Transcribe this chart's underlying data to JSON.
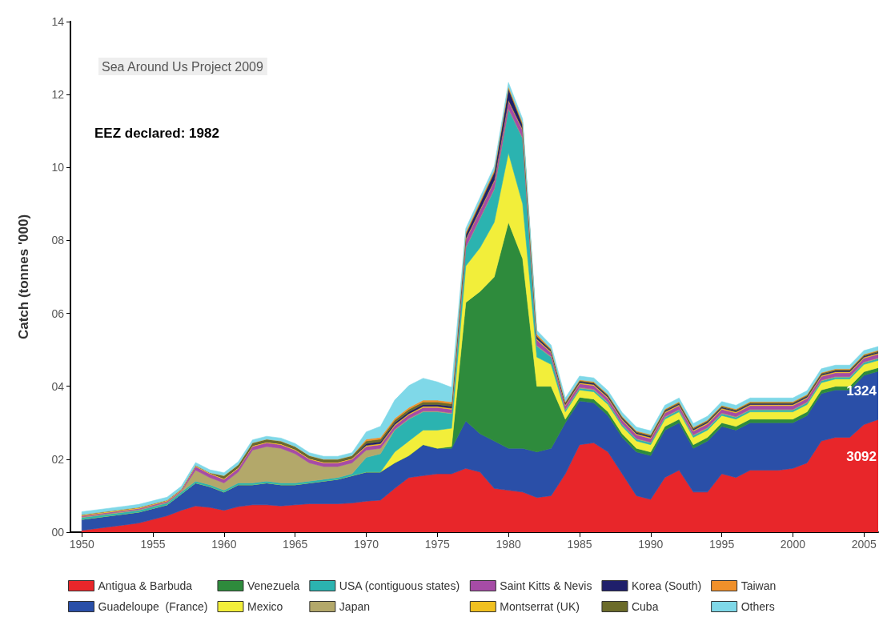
{
  "chart_data": {
    "type": "area",
    "stacked": true,
    "ylabel": "Catch (tonnes '000)",
    "annotations": [
      "Sea Around Us Project 2009",
      "EEZ declared: 1982",
      "1324",
      "3092"
    ],
    "x": [
      1950,
      1951,
      1952,
      1953,
      1954,
      1955,
      1956,
      1957,
      1958,
      1959,
      1960,
      1961,
      1962,
      1963,
      1964,
      1965,
      1966,
      1967,
      1968,
      1969,
      1970,
      1971,
      1972,
      1973,
      1974,
      1975,
      1976,
      1977,
      1978,
      1979,
      1980,
      1981,
      1982,
      1983,
      1984,
      1985,
      1986,
      1987,
      1988,
      1989,
      1990,
      1991,
      1992,
      1993,
      1994,
      1995,
      1996,
      1997,
      1998,
      1999,
      2000,
      2001,
      2002,
      2003,
      2004,
      2005,
      2006
    ],
    "xlim": [
      1949.2,
      2006
    ],
    "xticks": [
      1950,
      1955,
      1960,
      1965,
      1970,
      1975,
      1980,
      1985,
      1990,
      1995,
      2000,
      2005
    ],
    "ylim": [
      0,
      14
    ],
    "yticks": [
      {
        "value": 0,
        "label": "00"
      },
      {
        "value": 2,
        "label": "02"
      },
      {
        "value": 4,
        "label": "04"
      },
      {
        "value": 6,
        "label": "06"
      },
      {
        "value": 8,
        "label": "08"
      },
      {
        "value": 10,
        "label": "10"
      },
      {
        "value": 12,
        "label": "12"
      },
      {
        "value": 14,
        "label": "14"
      }
    ],
    "grid": false,
    "legend": "bottom",
    "series": [
      {
        "name": "Antigua & Barbuda",
        "color": "#e8262a",
        "values": [
          0.05,
          0.1,
          0.15,
          0.2,
          0.25,
          0.35,
          0.45,
          0.6,
          0.72,
          0.68,
          0.6,
          0.7,
          0.75,
          0.75,
          0.72,
          0.75,
          0.78,
          0.78,
          0.78,
          0.8,
          0.85,
          0.88,
          1.2,
          1.5,
          1.55,
          1.6,
          1.6,
          1.75,
          1.65,
          1.2,
          1.15,
          1.1,
          0.95,
          1.0,
          1.6,
          2.4,
          2.45,
          2.2,
          1.6,
          1.0,
          0.9,
          1.5,
          1.7,
          1.1,
          1.1,
          1.6,
          1.5,
          1.7,
          1.7,
          1.7,
          1.75,
          1.9,
          2.5,
          2.6,
          2.6,
          2.95,
          3.09
        ]
      },
      {
        "name": "Guadeloupe  (France)",
        "color": "#2a4fa8",
        "values": [
          0.3,
          0.3,
          0.3,
          0.3,
          0.3,
          0.3,
          0.3,
          0.45,
          0.63,
          0.57,
          0.5,
          0.6,
          0.55,
          0.6,
          0.58,
          0.55,
          0.57,
          0.62,
          0.67,
          0.75,
          0.8,
          0.77,
          0.7,
          0.6,
          0.85,
          0.7,
          0.7,
          1.3,
          1.05,
          1.3,
          1.15,
          1.2,
          1.25,
          1.3,
          1.4,
          1.2,
          1.1,
          1.0,
          1.0,
          1.2,
          1.2,
          1.3,
          1.3,
          1.2,
          1.4,
          1.3,
          1.3,
          1.3,
          1.3,
          1.3,
          1.25,
          1.3,
          1.3,
          1.3,
          1.3,
          1.35,
          1.32
        ]
      },
      {
        "name": "Venezuela",
        "color": "#2e8b3c",
        "values": [
          0,
          0,
          0,
          0,
          0,
          0,
          0,
          0,
          0,
          0,
          0,
          0,
          0,
          0,
          0,
          0,
          0,
          0,
          0,
          0,
          0,
          0,
          0,
          0,
          0,
          0,
          0.05,
          3.25,
          3.9,
          4.5,
          6.2,
          5.2,
          1.8,
          1.7,
          0.1,
          0.1,
          0.1,
          0.1,
          0.1,
          0.1,
          0.1,
          0.1,
          0.1,
          0.1,
          0.1,
          0.1,
          0.1,
          0.1,
          0.1,
          0.1,
          0.1,
          0.1,
          0.1,
          0.1,
          0.1,
          0.1,
          0.1
        ]
      },
      {
        "name": "Mexico",
        "color": "#f2ee3a",
        "values": [
          0,
          0,
          0,
          0,
          0,
          0,
          0,
          0,
          0,
          0,
          0,
          0,
          0,
          0,
          0,
          0,
          0,
          0,
          0,
          0,
          0,
          0,
          0.3,
          0.4,
          0.4,
          0.5,
          0.5,
          1.0,
          1.2,
          1.5,
          1.9,
          1.5,
          0.8,
          0.6,
          0.2,
          0.2,
          0.2,
          0.2,
          0.2,
          0.2,
          0.2,
          0.2,
          0.2,
          0.2,
          0.2,
          0.2,
          0.2,
          0.2,
          0.2,
          0.2,
          0.2,
          0.2,
          0.2,
          0.2,
          0.2,
          0.2,
          0.2
        ]
      },
      {
        "name": "USA (contiguous states)",
        "color": "#2bb3b0",
        "values": [
          0.05,
          0.05,
          0.05,
          0.05,
          0.05,
          0.05,
          0.05,
          0.05,
          0.05,
          0.05,
          0.05,
          0.05,
          0.05,
          0.05,
          0.05,
          0.05,
          0.05,
          0.05,
          0.05,
          0.05,
          0.4,
          0.5,
          0.6,
          0.6,
          0.5,
          0.5,
          0.4,
          0.5,
          0.8,
          0.9,
          1.2,
          1.8,
          0.3,
          0.2,
          0.05,
          0.05,
          0.05,
          0.05,
          0.05,
          0.05,
          0.05,
          0.05,
          0.05,
          0.05,
          0.05,
          0.05,
          0.05,
          0.05,
          0.05,
          0.05,
          0.05,
          0.05,
          0.05,
          0.05,
          0.05,
          0.05,
          0.05
        ]
      },
      {
        "name": "Japan",
        "color": "#b3a86a",
        "values": [
          0.02,
          0.02,
          0.02,
          0.02,
          0.02,
          0.02,
          0.02,
          0.02,
          0.3,
          0.2,
          0.2,
          0.3,
          0.9,
          0.95,
          0.95,
          0.8,
          0.5,
          0.35,
          0.3,
          0.3,
          0.2,
          0.15,
          0.02,
          0.02,
          0.02,
          0.02,
          0.02,
          0.02,
          0.02,
          0.02,
          0.02,
          0.02,
          0.02,
          0.02,
          0.02,
          0.02,
          0.02,
          0.02,
          0.02,
          0.02,
          0.02,
          0.02,
          0.02,
          0.02,
          0.02,
          0.02,
          0.02,
          0.02,
          0.02,
          0.02,
          0.02,
          0.02,
          0.02,
          0.02,
          0.02,
          0.02,
          0.02
        ]
      },
      {
        "name": "Saint Kitts & Nevis",
        "color": "#a64ca6",
        "values": [
          0.03,
          0.03,
          0.03,
          0.03,
          0.03,
          0.03,
          0.03,
          0.03,
          0.1,
          0.1,
          0.1,
          0.1,
          0.1,
          0.1,
          0.1,
          0.1,
          0.1,
          0.1,
          0.1,
          0.1,
          0.1,
          0.1,
          0.1,
          0.1,
          0.1,
          0.1,
          0.1,
          0.2,
          0.2,
          0.2,
          0.2,
          0.2,
          0.15,
          0.1,
          0.1,
          0.1,
          0.1,
          0.1,
          0.1,
          0.1,
          0.1,
          0.1,
          0.1,
          0.1,
          0.1,
          0.1,
          0.1,
          0.1,
          0.1,
          0.1,
          0.1,
          0.1,
          0.1,
          0.1,
          0.1,
          0.1,
          0.1
        ]
      },
      {
        "name": "Montserrat (UK)",
        "color": "#f0c020",
        "values": [
          0.03,
          0.03,
          0.03,
          0.03,
          0.03,
          0.03,
          0.03,
          0.03,
          0.03,
          0.03,
          0.03,
          0.03,
          0.03,
          0.03,
          0.03,
          0.03,
          0.03,
          0.03,
          0.03,
          0.03,
          0.03,
          0.03,
          0.03,
          0.03,
          0.03,
          0.03,
          0.03,
          0.03,
          0.03,
          0.03,
          0.03,
          0.03,
          0.03,
          0.03,
          0.03,
          0.03,
          0.03,
          0.03,
          0.03,
          0.03,
          0.03,
          0.03,
          0.03,
          0.03,
          0.03,
          0.03,
          0.03,
          0.03,
          0.03,
          0.03,
          0.03,
          0.03,
          0.03,
          0.03,
          0.03,
          0.03,
          0.03
        ]
      },
      {
        "name": "Korea (South)",
        "color": "#1f1f6b",
        "values": [
          0,
          0,
          0,
          0,
          0,
          0,
          0,
          0,
          0,
          0,
          0,
          0,
          0,
          0,
          0,
          0,
          0,
          0,
          0,
          0,
          0.05,
          0.05,
          0.05,
          0.05,
          0.05,
          0.05,
          0.05,
          0.1,
          0.15,
          0.2,
          0.3,
          0.1,
          0.05,
          0.03,
          0.03,
          0.03,
          0.03,
          0.03,
          0.03,
          0.03,
          0.03,
          0.03,
          0.03,
          0.03,
          0.03,
          0.03,
          0.03,
          0.03,
          0.03,
          0.03,
          0.03,
          0.03,
          0.03,
          0.03,
          0.03,
          0.03,
          0.03
        ]
      },
      {
        "name": "Cuba",
        "color": "#6b6b2a",
        "values": [
          0,
          0,
          0,
          0,
          0,
          0,
          0,
          0,
          0,
          0,
          0.07,
          0.07,
          0.07,
          0.07,
          0.07,
          0.07,
          0.07,
          0.07,
          0.07,
          0.07,
          0.07,
          0.07,
          0.07,
          0.07,
          0.07,
          0.07,
          0.07,
          0.03,
          0.03,
          0.03,
          0.03,
          0.03,
          0.03,
          0.03,
          0.03,
          0.03,
          0.03,
          0.03,
          0.03,
          0.03,
          0.03,
          0.03,
          0.03,
          0.03,
          0.03,
          0.03,
          0.03,
          0.03,
          0.03,
          0.03,
          0.03,
          0.03,
          0.03,
          0.03,
          0.03,
          0.03,
          0.03
        ]
      },
      {
        "name": "Taiwan",
        "color": "#f0902a",
        "values": [
          0,
          0,
          0,
          0,
          0,
          0,
          0,
          0,
          0,
          0,
          0,
          0,
          0,
          0,
          0,
          0,
          0,
          0,
          0,
          0,
          0.05,
          0.05,
          0.05,
          0.05,
          0.05,
          0.05,
          0.05,
          0.05,
          0.05,
          0.05,
          0.05,
          0.05,
          0.05,
          0.02,
          0.02,
          0.02,
          0.02,
          0.02,
          0.02,
          0.02,
          0.02,
          0.02,
          0.02,
          0.02,
          0.02,
          0.02,
          0.02,
          0.02,
          0.02,
          0.02,
          0.02,
          0.02,
          0.02,
          0.02,
          0.02,
          0.02,
          0.02
        ]
      },
      {
        "name": "Others",
        "color": "#7fd8e8",
        "values": [
          0.08,
          0.08,
          0.08,
          0.08,
          0.08,
          0.08,
          0.08,
          0.08,
          0.08,
          0.08,
          0.08,
          0.08,
          0.08,
          0.08,
          0.08,
          0.08,
          0.08,
          0.08,
          0.08,
          0.08,
          0.2,
          0.3,
          0.5,
          0.6,
          0.6,
          0.5,
          0.4,
          0.1,
          0.1,
          0.1,
          0.1,
          0.1,
          0.1,
          0.1,
          0.1,
          0.1,
          0.1,
          0.1,
          0.1,
          0.1,
          0.1,
          0.1,
          0.1,
          0.1,
          0.1,
          0.1,
          0.1,
          0.1,
          0.1,
          0.1,
          0.1,
          0.1,
          0.1,
          0.1,
          0.1,
          0.1,
          0.1
        ]
      }
    ]
  }
}
